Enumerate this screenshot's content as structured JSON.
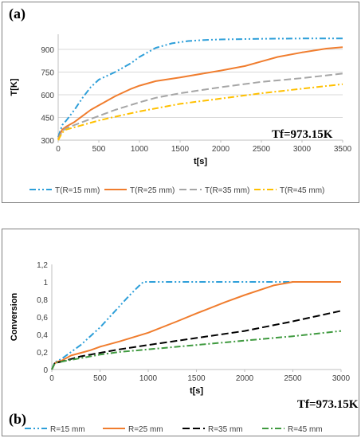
{
  "panels": {
    "a": {
      "tag": "(a)",
      "annotation": "Tf=973.15K"
    },
    "b": {
      "tag": "(b)",
      "annotation": "Tf=973.15K"
    }
  },
  "chart_data": [
    {
      "type": "line",
      "title": "",
      "xlabel": "t[s]",
      "ylabel": "T[K]",
      "xlim": [
        0,
        3500
      ],
      "ylim": [
        300,
        1000
      ],
      "xticks": [
        0,
        500,
        1000,
        1500,
        2000,
        2500,
        3000,
        3500
      ],
      "yticks": [
        300,
        450,
        600,
        750,
        900
      ],
      "grid": "horizontal",
      "legend_position": "bottom",
      "series": [
        {
          "name": "T(R=15 mm)",
          "color": "#2e9fd9",
          "style": "dash-dot-dot",
          "x": [
            0,
            50,
            100,
            200,
            300,
            400,
            500,
            700,
            900,
            1000,
            1100,
            1200,
            1400,
            1600,
            1800,
            2000,
            2500,
            3000,
            3500
          ],
          "y": [
            320,
            400,
            430,
            500,
            580,
            650,
            700,
            750,
            810,
            850,
            880,
            910,
            940,
            955,
            962,
            966,
            970,
            972,
            972
          ]
        },
        {
          "name": "T(R=25 mm)",
          "color": "#f07d2e",
          "style": "solid",
          "x": [
            0,
            50,
            100,
            200,
            300,
            400,
            500,
            700,
            900,
            1000,
            1200,
            1500,
            2000,
            2300,
            2500,
            2700,
            3000,
            3300,
            3500
          ],
          "y": [
            310,
            370,
            390,
            420,
            460,
            500,
            530,
            590,
            640,
            660,
            690,
            715,
            760,
            790,
            820,
            850,
            880,
            905,
            915
          ]
        },
        {
          "name": "T(R=35 mm)",
          "color": "#a6a6a6",
          "style": "dashed",
          "x": [
            0,
            50,
            100,
            200,
            300,
            500,
            700,
            1000,
            1200,
            1500,
            2000,
            2500,
            3000,
            3500
          ],
          "y": [
            305,
            360,
            380,
            400,
            420,
            460,
            500,
            550,
            580,
            610,
            650,
            685,
            710,
            740
          ]
        },
        {
          "name": "T(R=45 mm)",
          "color": "#ffc000",
          "style": "dash-dot",
          "x": [
            0,
            50,
            100,
            200,
            300,
            500,
            700,
            1000,
            1500,
            2000,
            2500,
            3000,
            3500
          ],
          "y": [
            300,
            350,
            370,
            385,
            400,
            430,
            455,
            490,
            540,
            575,
            610,
            640,
            670
          ]
        }
      ]
    },
    {
      "type": "line",
      "title": "",
      "xlabel": "t[s]",
      "ylabel": "Conversion",
      "xlim": [
        0,
        3000
      ],
      "ylim": [
        0,
        1.2
      ],
      "xticks": [
        0,
        500,
        1000,
        1500,
        2000,
        2500,
        3000
      ],
      "yticks": [
        0,
        0.2,
        0.4,
        0.6,
        0.8,
        1,
        1.2
      ],
      "ytick_labels": [
        "0",
        "0,2",
        "0,4",
        "0,6",
        "0,8",
        "1",
        "1,2"
      ],
      "grid": "none",
      "legend_position": "bottom",
      "series": [
        {
          "name": "R=15 mm",
          "color": "#2e9fd9",
          "style": "dash-dot-dot",
          "x": [
            0,
            30,
            60,
            100,
            200,
            300,
            400,
            500,
            600,
            700,
            800,
            900,
            950,
            1000,
            1500,
            2000,
            2500,
            3000
          ],
          "y": [
            0,
            0.08,
            0.1,
            0.12,
            0.2,
            0.28,
            0.38,
            0.48,
            0.6,
            0.72,
            0.84,
            0.95,
            1.0,
            1.0,
            1.0,
            1.0,
            1.0,
            1.0
          ]
        },
        {
          "name": "R=25 mm",
          "color": "#f07d2e",
          "style": "solid",
          "x": [
            0,
            30,
            60,
            100,
            200,
            300,
            400,
            500,
            700,
            1000,
            1300,
            1500,
            1800,
            2000,
            2300,
            2500,
            2550,
            3000
          ],
          "y": [
            0,
            0.07,
            0.09,
            0.1,
            0.16,
            0.19,
            0.22,
            0.26,
            0.32,
            0.42,
            0.55,
            0.64,
            0.77,
            0.85,
            0.96,
            1.0,
            1.0,
            1.0
          ]
        },
        {
          "name": "R=35 mm",
          "color": "#000000",
          "style": "dashed",
          "x": [
            0,
            30,
            60,
            100,
            200,
            300,
            400,
            500,
            700,
            1000,
            1500,
            2000,
            2500,
            3000
          ],
          "y": [
            0,
            0.07,
            0.08,
            0.09,
            0.12,
            0.15,
            0.17,
            0.19,
            0.23,
            0.28,
            0.36,
            0.44,
            0.55,
            0.67
          ]
        },
        {
          "name": "R=45 mm",
          "color": "#3f9a3f",
          "style": "dash-dot",
          "x": [
            0,
            30,
            60,
            100,
            200,
            300,
            400,
            500,
            700,
            1000,
            1500,
            2000,
            2500,
            3000
          ],
          "y": [
            0,
            0.07,
            0.08,
            0.09,
            0.11,
            0.13,
            0.15,
            0.17,
            0.2,
            0.23,
            0.28,
            0.33,
            0.38,
            0.44
          ]
        }
      ]
    }
  ]
}
